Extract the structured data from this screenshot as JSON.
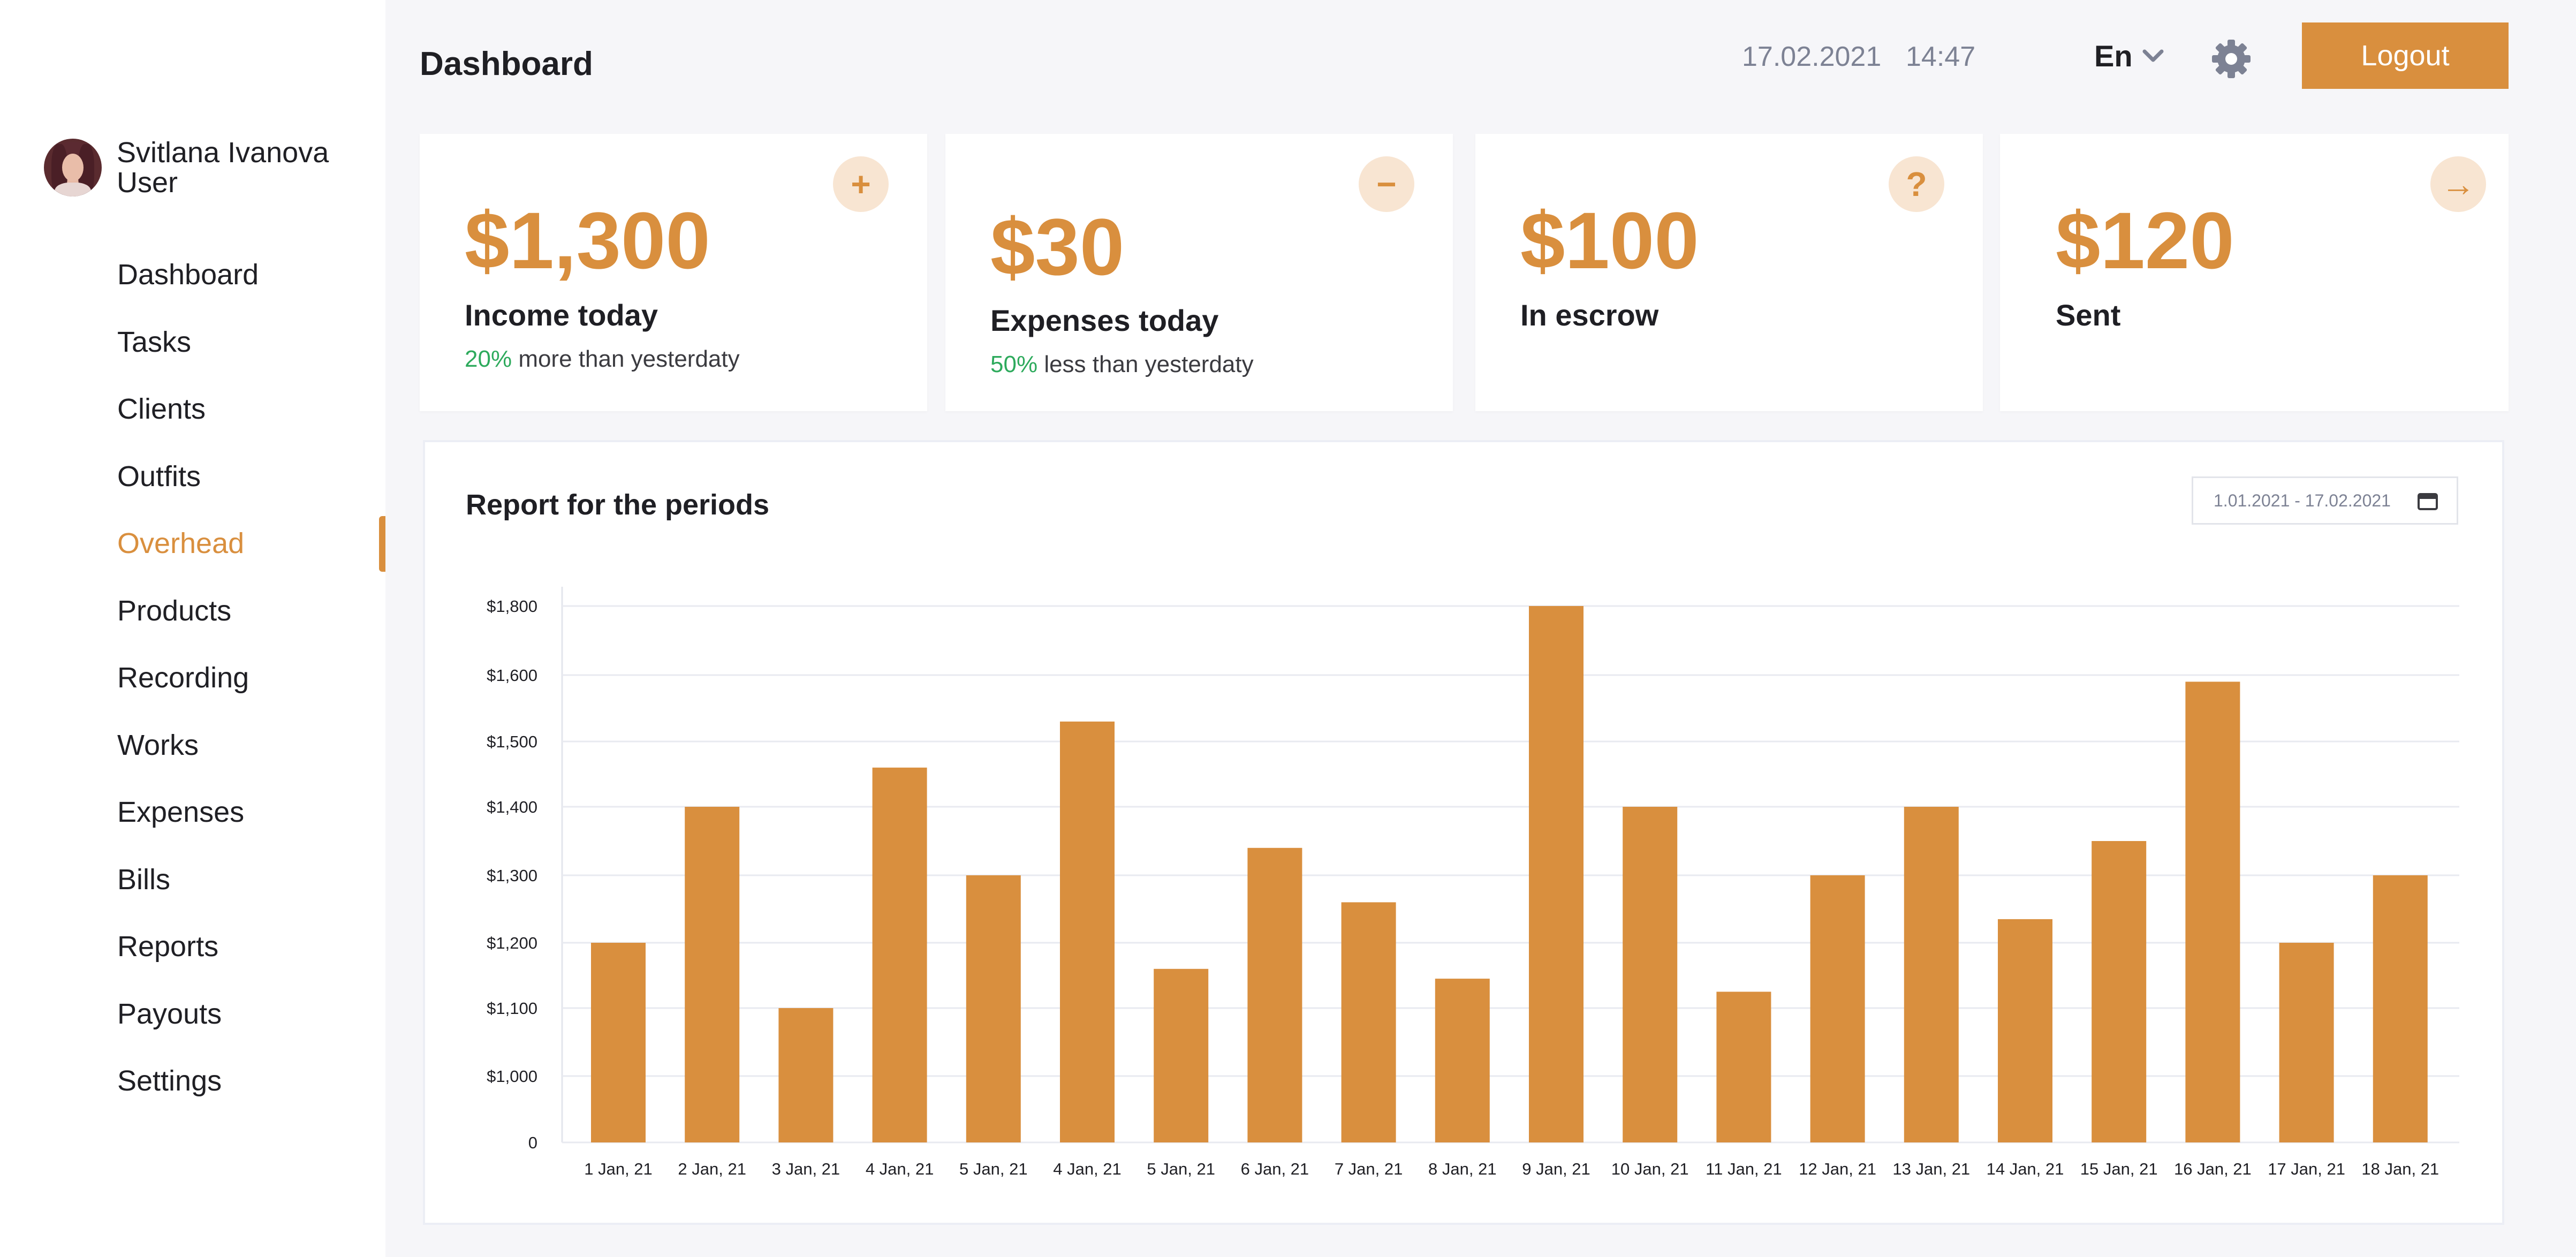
{
  "profile": {
    "name": "Svitlana Ivanova",
    "role": "User"
  },
  "nav": {
    "items": [
      "Dashboard",
      "Tasks",
      "Clients",
      "Outfits",
      "Overhead",
      "Products",
      "Recording",
      "Works",
      "Expenses",
      "Bills",
      "Reports",
      "Payouts",
      "Settings"
    ],
    "active": "Overhead"
  },
  "header": {
    "title": "Dashboard",
    "date": "17.02.2021",
    "time": "14:47",
    "language": "En",
    "logout_label": "Logout"
  },
  "cards": [
    {
      "amount": "$1,300",
      "label": "Income today",
      "note_pct": "20%",
      "note_text": "more than yesterdaty",
      "icon": "plus-icon",
      "icon_glyph": "+"
    },
    {
      "amount": "$30",
      "label": "Expenses today",
      "note_pct": "50%",
      "note_text": "less than yesterdaty",
      "icon": "minus-icon",
      "icon_glyph": "−"
    },
    {
      "amount": "$100",
      "label": "In escrow",
      "icon": "question-icon",
      "icon_glyph": "?"
    },
    {
      "amount": "$120",
      "label": "Sent",
      "icon": "arrow-right-icon",
      "icon_glyph": "→"
    }
  ],
  "report": {
    "title": "Report for the periods",
    "date_range": "1.01.2021 - 17.02.2021"
  },
  "colors": {
    "accent": "#d98f3e",
    "positive": "#2daa5c",
    "muted": "#7d8294",
    "background": "#f6f6f9"
  },
  "chart_data": {
    "type": "bar",
    "categories": [
      "1 Jan, 21",
      "2 Jan, 21",
      "3 Jan, 21",
      "4 Jan, 21",
      "5 Jan, 21",
      "4 Jan, 21",
      "5 Jan, 21",
      "6 Jan, 21",
      "7 Jan, 21",
      "8 Jan, 21",
      "9 Jan, 21",
      "10 Jan, 21",
      "11 Jan, 21",
      "12 Jan, 21",
      "13 Jan, 21",
      "14 Jan, 21",
      "15 Jan, 21",
      "16 Jan, 21",
      "17 Jan, 21",
      "18 Jan, 21"
    ],
    "values": [
      1200,
      1400,
      1100,
      1460,
      1300,
      1530,
      1160,
      1340,
      1260,
      1145,
      1800,
      1400,
      1125,
      1300,
      1400,
      1235,
      1350,
      1590,
      1200,
      1300
    ],
    "y_ticks": [
      "0",
      "$1,000",
      "$1,100",
      "$1,200",
      "$1,300",
      "$1,400",
      "$1,500",
      "$1,600",
      "$1,800"
    ],
    "y_tick_values": [
      0,
      1000,
      1100,
      1200,
      1300,
      1400,
      1500,
      1600,
      1800
    ],
    "ylim": [
      0,
      1800
    ],
    "grid": true,
    "legend": "none",
    "bar_color": "#d98f3e",
    "title": "",
    "xlabel": "",
    "ylabel": ""
  }
}
